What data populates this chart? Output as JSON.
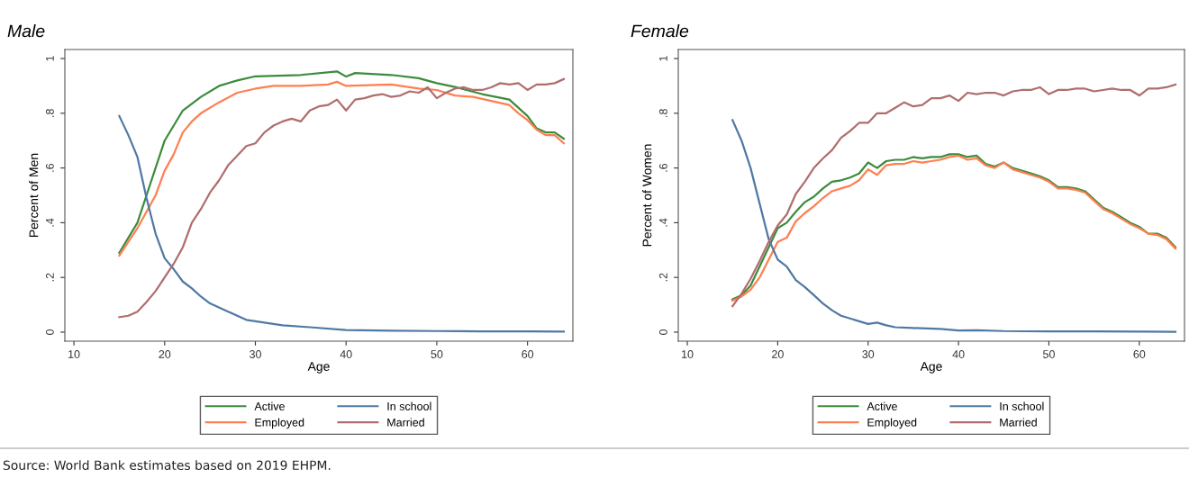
{
  "chart_data": [
    {
      "type": "line",
      "title": "Male",
      "xlabel": "Age",
      "ylabel": "Percent of Men",
      "xlim": [
        9,
        65
      ],
      "xticks": [
        10,
        20,
        30,
        40,
        50,
        60
      ],
      "ylim": [
        -0.033,
        1.033
      ],
      "yticks": [
        {
          "value": 0,
          "label": "0"
        },
        {
          "value": 0.2,
          "label": ".2"
        },
        {
          "value": 0.4,
          "label": ".4"
        },
        {
          "value": 0.6,
          "label": ".6"
        },
        {
          "value": 0.8,
          "label": ".8"
        },
        {
          "value": 1,
          "label": "1"
        }
      ],
      "grid": false,
      "legend": "bottom",
      "marker": "none",
      "line_style": "solid",
      "series": [
        {
          "name": "Active",
          "color": "#3d8b3d",
          "x": [
            15,
            17,
            18,
            20,
            22,
            24,
            26,
            28,
            30,
            35,
            39,
            40,
            41,
            45,
            48,
            50,
            52,
            55,
            58,
            60,
            61,
            62,
            63,
            64
          ],
          "values": [
            0.29,
            0.4,
            0.5,
            0.7,
            0.81,
            0.86,
            0.9,
            0.92,
            0.935,
            0.94,
            0.953,
            0.934,
            0.947,
            0.94,
            0.928,
            0.91,
            0.896,
            0.87,
            0.85,
            0.79,
            0.745,
            0.73,
            0.73,
            0.707
          ]
        },
        {
          "name": "Employed",
          "color": "#ff7f50",
          "x": [
            15,
            17,
            19,
            20,
            21,
            22,
            23,
            24,
            26,
            28,
            30,
            32,
            35,
            38,
            39,
            40,
            45,
            48,
            50,
            52,
            54,
            56,
            58,
            59,
            60,
            61,
            62,
            63,
            64
          ],
          "values": [
            0.28,
            0.38,
            0.5,
            0.59,
            0.65,
            0.73,
            0.77,
            0.8,
            0.84,
            0.875,
            0.89,
            0.9,
            0.9,
            0.905,
            0.915,
            0.9,
            0.905,
            0.89,
            0.885,
            0.865,
            0.86,
            0.845,
            0.83,
            0.8,
            0.775,
            0.74,
            0.72,
            0.72,
            0.69
          ]
        },
        {
          "name": "In school",
          "color": "#4f79a3",
          "x": [
            15,
            16,
            17,
            18,
            19,
            20,
            21,
            22,
            23,
            24,
            25,
            27,
            29,
            30,
            33,
            36,
            40,
            45,
            50,
            55,
            60,
            64
          ],
          "values": [
            0.79,
            0.72,
            0.64,
            0.49,
            0.36,
            0.27,
            0.23,
            0.185,
            0.16,
            0.13,
            0.105,
            0.075,
            0.045,
            0.04,
            0.025,
            0.018,
            0.008,
            0.005,
            0.004,
            0.003,
            0.003,
            0.002
          ]
        },
        {
          "name": "Married",
          "color": "#b06d6d",
          "x": [
            15,
            16,
            17,
            18,
            19,
            20,
            21,
            22,
            23,
            24,
            25,
            26,
            27,
            28,
            29,
            30,
            31,
            32,
            33,
            34,
            35,
            36,
            37,
            38,
            39,
            40,
            41,
            42,
            43,
            44,
            45,
            46,
            47,
            48,
            49,
            50,
            51,
            52,
            53,
            54,
            55,
            56,
            57,
            58,
            59,
            60,
            61,
            62,
            63,
            64
          ],
          "values": [
            0.055,
            0.06,
            0.075,
            0.11,
            0.15,
            0.2,
            0.25,
            0.31,
            0.4,
            0.45,
            0.51,
            0.555,
            0.61,
            0.645,
            0.68,
            0.69,
            0.73,
            0.755,
            0.77,
            0.78,
            0.77,
            0.81,
            0.825,
            0.83,
            0.85,
            0.81,
            0.85,
            0.855,
            0.865,
            0.87,
            0.86,
            0.865,
            0.88,
            0.875,
            0.895,
            0.855,
            0.875,
            0.89,
            0.895,
            0.885,
            0.885,
            0.895,
            0.91,
            0.905,
            0.91,
            0.885,
            0.905,
            0.905,
            0.91,
            0.925
          ]
        }
      ]
    },
    {
      "type": "line",
      "title": "Female",
      "xlabel": "Age",
      "ylabel": "Percent of Women",
      "xlim": [
        9,
        65
      ],
      "xticks": [
        10,
        20,
        30,
        40,
        50,
        60
      ],
      "ylim": [
        -0.033,
        1.033
      ],
      "yticks": [
        {
          "value": 0,
          "label": "0"
        },
        {
          "value": 0.2,
          "label": ".2"
        },
        {
          "value": 0.4,
          "label": ".4"
        },
        {
          "value": 0.6,
          "label": ".6"
        },
        {
          "value": 0.8,
          "label": ".8"
        },
        {
          "value": 1,
          "label": "1"
        }
      ],
      "grid": false,
      "legend": "bottom",
      "marker": "none",
      "line_style": "solid",
      "annotations": [
        "Source: World Bank estimates based on 2019 EHPM."
      ],
      "series": [
        {
          "name": "Active",
          "color": "#3d8b3d",
          "x": [
            15,
            16,
            17,
            18,
            19,
            20,
            21,
            22,
            23,
            24,
            25,
            26,
            27,
            28,
            29,
            30,
            31,
            32,
            33,
            34,
            35,
            36,
            37,
            38,
            39,
            40,
            41,
            42,
            43,
            44,
            45,
            46,
            47,
            48,
            49,
            50,
            51,
            52,
            53,
            54,
            55,
            56,
            57,
            58,
            59,
            60,
            61,
            62,
            63,
            64
          ],
          "values": [
            0.12,
            0.135,
            0.17,
            0.24,
            0.31,
            0.38,
            0.4,
            0.44,
            0.475,
            0.495,
            0.525,
            0.55,
            0.555,
            0.565,
            0.58,
            0.62,
            0.6,
            0.625,
            0.63,
            0.63,
            0.64,
            0.635,
            0.64,
            0.64,
            0.65,
            0.65,
            0.64,
            0.645,
            0.615,
            0.605,
            0.62,
            0.6,
            0.59,
            0.58,
            0.57,
            0.555,
            0.53,
            0.53,
            0.525,
            0.515,
            0.485,
            0.455,
            0.44,
            0.42,
            0.4,
            0.385,
            0.36,
            0.36,
            0.345,
            0.31
          ]
        },
        {
          "name": "Employed",
          "color": "#ff7f50",
          "x": [
            15,
            16,
            17,
            18,
            19,
            20,
            21,
            22,
            23,
            24,
            25,
            26,
            27,
            28,
            29,
            30,
            31,
            32,
            33,
            34,
            35,
            36,
            37,
            38,
            39,
            40,
            41,
            42,
            43,
            44,
            45,
            46,
            47,
            48,
            49,
            50,
            51,
            52,
            53,
            54,
            55,
            56,
            57,
            58,
            59,
            60,
            61,
            62,
            63,
            64
          ],
          "values": [
            0.115,
            0.13,
            0.155,
            0.2,
            0.265,
            0.33,
            0.345,
            0.405,
            0.435,
            0.46,
            0.49,
            0.515,
            0.525,
            0.535,
            0.555,
            0.595,
            0.575,
            0.61,
            0.615,
            0.615,
            0.625,
            0.62,
            0.625,
            0.63,
            0.64,
            0.645,
            0.63,
            0.635,
            0.61,
            0.6,
            0.62,
            0.595,
            0.585,
            0.575,
            0.565,
            0.55,
            0.525,
            0.525,
            0.52,
            0.51,
            0.48,
            0.45,
            0.435,
            0.415,
            0.395,
            0.38,
            0.36,
            0.355,
            0.34,
            0.305
          ]
        },
        {
          "name": "In school",
          "color": "#4f79a3",
          "x": [
            15,
            16,
            17,
            18,
            19,
            20,
            21,
            22,
            23,
            24,
            25,
            26,
            27,
            28,
            29,
            30,
            31,
            32,
            33,
            35,
            38,
            40,
            42,
            45,
            50,
            55,
            60,
            64
          ],
          "values": [
            0.775,
            0.7,
            0.6,
            0.47,
            0.34,
            0.265,
            0.24,
            0.19,
            0.165,
            0.135,
            0.105,
            0.08,
            0.06,
            0.05,
            0.04,
            0.03,
            0.035,
            0.025,
            0.018,
            0.015,
            0.012,
            0.006,
            0.007,
            0.004,
            0.003,
            0.003,
            0.002,
            0.001
          ]
        },
        {
          "name": "Married",
          "color": "#b06d6d",
          "x": [
            15,
            16,
            17,
            18,
            19,
            20,
            21,
            22,
            23,
            24,
            25,
            26,
            27,
            28,
            29,
            30,
            31,
            32,
            33,
            34,
            35,
            36,
            37,
            38,
            39,
            40,
            41,
            42,
            43,
            44,
            45,
            46,
            47,
            48,
            49,
            50,
            51,
            52,
            53,
            54,
            55,
            56,
            57,
            58,
            59,
            60,
            61,
            62,
            63,
            64
          ],
          "values": [
            0.095,
            0.14,
            0.195,
            0.26,
            0.33,
            0.39,
            0.43,
            0.505,
            0.55,
            0.6,
            0.635,
            0.665,
            0.71,
            0.735,
            0.765,
            0.765,
            0.8,
            0.8,
            0.82,
            0.84,
            0.825,
            0.83,
            0.855,
            0.855,
            0.865,
            0.845,
            0.875,
            0.87,
            0.875,
            0.875,
            0.865,
            0.88,
            0.885,
            0.885,
            0.895,
            0.87,
            0.885,
            0.885,
            0.89,
            0.89,
            0.88,
            0.885,
            0.89,
            0.885,
            0.885,
            0.865,
            0.89,
            0.89,
            0.895,
            0.905
          ]
        }
      ]
    }
  ]
}
